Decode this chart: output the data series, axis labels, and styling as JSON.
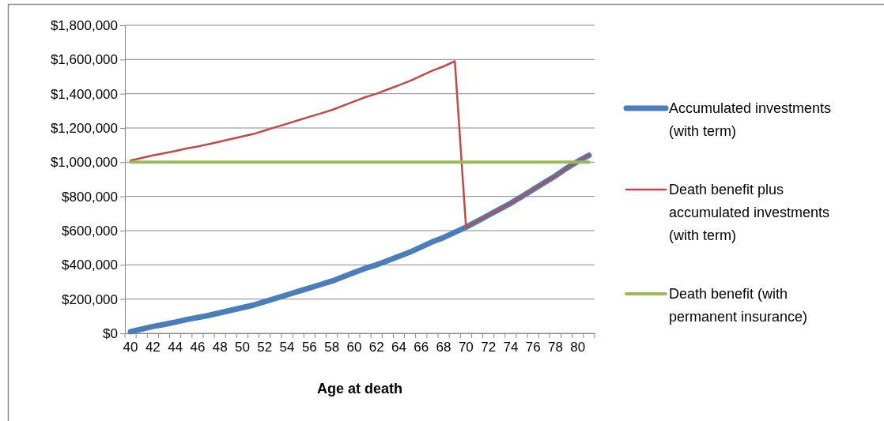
{
  "chart_data": {
    "type": "line",
    "xlabel": "Age at death",
    "categories": [
      "40",
      null,
      "42",
      null,
      "44",
      null,
      "46",
      null,
      "48",
      null,
      "50",
      null,
      "52",
      null,
      "54",
      null,
      "56",
      null,
      "58",
      null,
      "60",
      null,
      "62",
      null,
      "64",
      null,
      "66",
      null,
      "68",
      null,
      "70",
      null,
      "72",
      null,
      "74",
      null,
      "76",
      null,
      "78",
      null,
      "80",
      null
    ],
    "series": [
      {
        "name": "Accumulated investments (with term)",
        "color": "#4a7ebb",
        "values": [
          10000,
          25000,
          40000,
          52000,
          65000,
          80000,
          92000,
          105000,
          120000,
          135000,
          150000,
          165000,
          185000,
          205000,
          225000,
          245000,
          265000,
          285000,
          305000,
          330000,
          355000,
          380000,
          400000,
          425000,
          450000,
          475000,
          505000,
          535000,
          560000,
          590000,
          620000,
          655000,
          690000,
          725000,
          760000,
          800000,
          840000,
          880000,
          920000,
          965000,
          1005000,
          1040000
        ]
      },
      {
        "name": "Death benefit plus accumulated investments (with term)",
        "color": "#be4b48",
        "values": [
          1010000,
          1025000,
          1040000,
          1052000,
          1065000,
          1080000,
          1092000,
          1105000,
          1120000,
          1135000,
          1150000,
          1165000,
          1185000,
          1205000,
          1225000,
          1245000,
          1265000,
          1285000,
          1305000,
          1330000,
          1355000,
          1380000,
          1400000,
          1425000,
          1450000,
          1475000,
          1505000,
          1535000,
          1560000,
          1590000,
          620000,
          655000,
          690000,
          725000,
          760000,
          800000,
          840000,
          880000,
          920000,
          965000,
          1005000,
          1040000
        ]
      },
      {
        "name": "Death benefit (with permanent insurance)",
        "color": "#9bbb59",
        "values": [
          1000000,
          1000000,
          1000000,
          1000000,
          1000000,
          1000000,
          1000000,
          1000000,
          1000000,
          1000000,
          1000000,
          1000000,
          1000000,
          1000000,
          1000000,
          1000000,
          1000000,
          1000000,
          1000000,
          1000000,
          1000000,
          1000000,
          1000000,
          1000000,
          1000000,
          1000000,
          1000000,
          1000000,
          1000000,
          1000000,
          1000000,
          1000000,
          1000000,
          1000000,
          1000000,
          1000000,
          1000000,
          1000000,
          1000000,
          1000000,
          1000000,
          1000000
        ]
      }
    ],
    "ylim": [
      0,
      1800000
    ],
    "yticks": [
      {
        "value": 0,
        "label": "$0"
      },
      {
        "value": 200000,
        "label": "$200,000"
      },
      {
        "value": 400000,
        "label": "$400,000"
      },
      {
        "value": 600000,
        "label": "$600,000"
      },
      {
        "value": 800000,
        "label": "$800,000"
      },
      {
        "value": 1000000,
        "label": "$1,000,000"
      },
      {
        "value": 1200000,
        "label": "$1,200,000"
      },
      {
        "value": 1400000,
        "label": "$1,400,000"
      },
      {
        "value": 1600000,
        "label": "$1,600,000"
      },
      {
        "value": 1800000,
        "label": "$1,800,000"
      }
    ],
    "grid": "y",
    "legend": "right"
  }
}
